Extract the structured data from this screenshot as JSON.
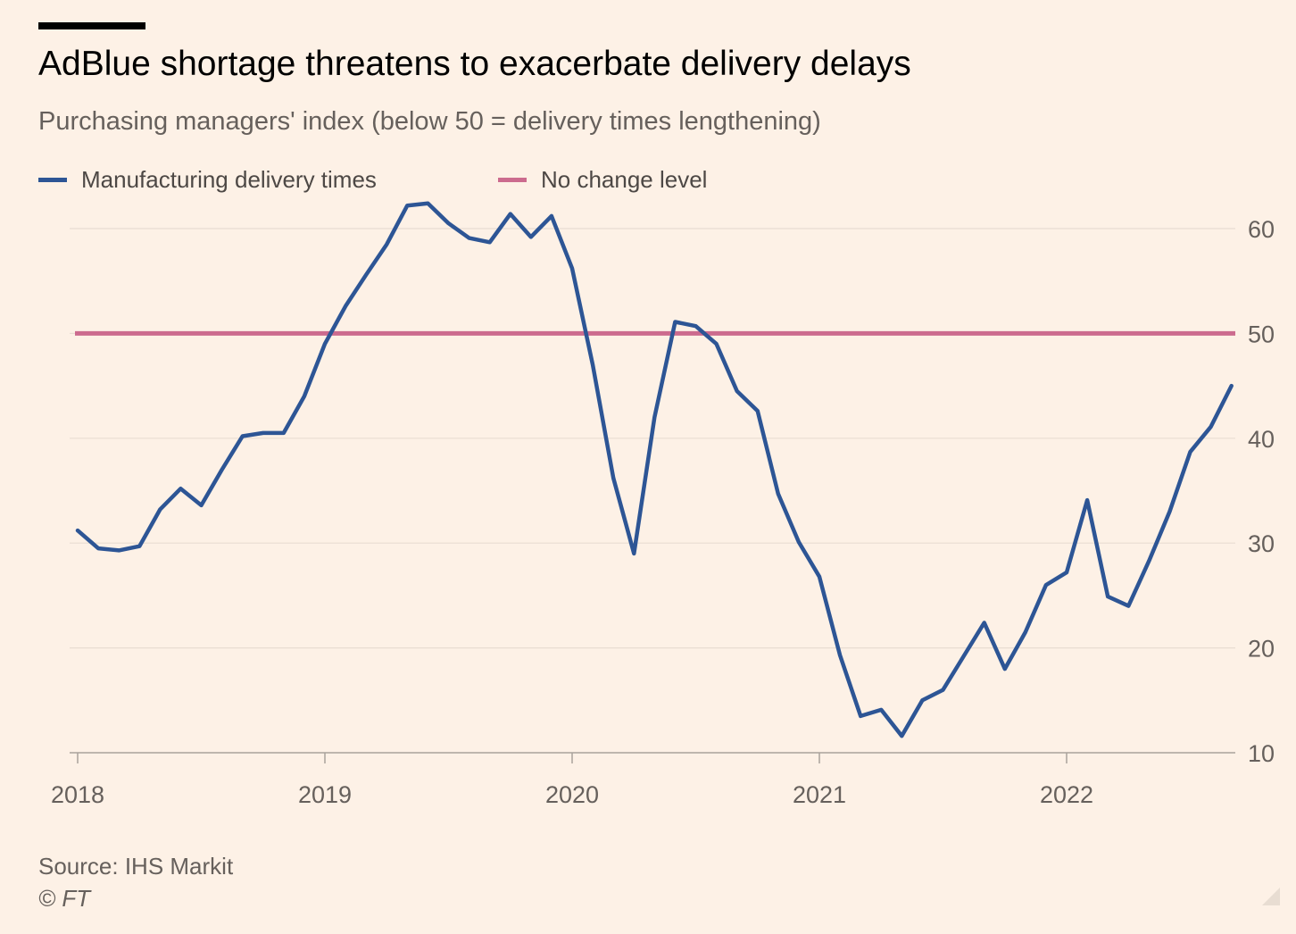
{
  "title": "AdBlue shortage threatens to exacerbate delivery delays",
  "subtitle": "Purchasing managers' index (below 50 = delivery times lengthening)",
  "legend": {
    "series1": "Manufacturing delivery times",
    "series2": "No change level"
  },
  "colors": {
    "series1": "#2d5595",
    "series2": "#cc6b8e",
    "grid": "#e9ddd2",
    "axis": "#66605c",
    "background": "#fdf1e6"
  },
  "source": "Source: IHS Markit",
  "credit": "© FT",
  "chart_data": {
    "type": "line",
    "x_start": "2018-01",
    "frequency": "monthly",
    "xlim": [
      2018.0,
      2022.75
    ],
    "ylim": [
      10,
      60
    ],
    "y_ticks": [
      10,
      20,
      30,
      40,
      50,
      60
    ],
    "x_ticks": [
      {
        "value": 2018,
        "label": "2018"
      },
      {
        "value": 2019,
        "label": "2019"
      },
      {
        "value": 2020,
        "label": "2020"
      },
      {
        "value": 2021,
        "label": "2021"
      },
      {
        "value": 2022,
        "label": "2022"
      }
    ],
    "grid": true,
    "y_axis_side": "right",
    "legend_position": "top-left",
    "reference_line": {
      "name": "No change level",
      "y": 50
    },
    "series": [
      {
        "name": "Manufacturing delivery times",
        "values": [
          31.2,
          29.5,
          29.3,
          29.7,
          33.2,
          35.2,
          33.6,
          37.0,
          40.2,
          40.5,
          40.5,
          44.0,
          49.0,
          52.6,
          55.6,
          58.5,
          62.2,
          62.4,
          60.5,
          59.1,
          58.7,
          61.4,
          59.2,
          61.2,
          56.2,
          47.0,
          36.2,
          29.0,
          42.0,
          51.1,
          50.7,
          49.0,
          44.5,
          42.6,
          34.7,
          30.1,
          26.8,
          19.3,
          13.5,
          14.1,
          11.6,
          15.0,
          16.0,
          19.2,
          22.4,
          18.0,
          21.5,
          26.0,
          27.2,
          34.1,
          24.9,
          24.0,
          28.3,
          33.0,
          38.7,
          41.1,
          45.0
        ]
      }
    ]
  }
}
